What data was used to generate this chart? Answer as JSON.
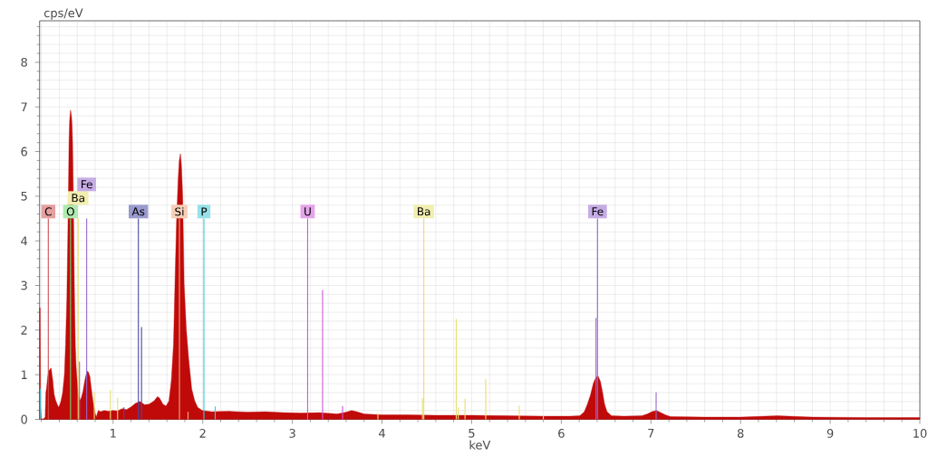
{
  "chart_data": {
    "type": "area",
    "xlabel": "keV",
    "ylabel": "cps/eV",
    "xlim": [
      0.18,
      10
    ],
    "ylim": [
      0,
      8.93
    ],
    "xticks": [
      {
        "value": 0.2,
        "label": null
      },
      {
        "value": 0.4,
        "label": null
      },
      {
        "value": 0.6,
        "label": null
      },
      {
        "value": 0.8,
        "label": null
      },
      1,
      {
        "value": 1.2,
        "label": null
      },
      {
        "value": 1.4,
        "label": null
      },
      {
        "value": 1.6,
        "label": null
      },
      {
        "value": 1.8,
        "label": null
      },
      2,
      {
        "value": 2.2,
        "label": null
      },
      {
        "value": 2.4,
        "label": null
      },
      {
        "value": 2.6,
        "label": null
      },
      {
        "value": 2.8,
        "label": null
      },
      3,
      {
        "value": 3.2,
        "label": null
      },
      {
        "value": 3.4,
        "label": null
      },
      {
        "value": 3.6,
        "label": null
      },
      {
        "value": 3.8,
        "label": null
      },
      4,
      {
        "value": 4.2,
        "label": null
      },
      {
        "value": 4.4,
        "label": null
      },
      {
        "value": 4.6,
        "label": null
      },
      {
        "value": 4.8,
        "label": null
      },
      5,
      {
        "value": 5.2,
        "label": null
      },
      {
        "value": 5.4,
        "label": null
      },
      {
        "value": 5.6,
        "label": null
      },
      {
        "value": 5.8,
        "label": null
      },
      6,
      {
        "value": 6.2,
        "label": null
      },
      {
        "value": 6.4,
        "label": null
      },
      {
        "value": 6.6,
        "label": null
      },
      {
        "value": 6.8,
        "label": null
      },
      7,
      {
        "value": 7.2,
        "label": null
      },
      {
        "value": 7.4,
        "label": null
      },
      {
        "value": 7.6,
        "label": null
      },
      {
        "value": 7.8,
        "label": null
      },
      8,
      {
        "value": 8.2,
        "label": null
      },
      {
        "value": 8.4,
        "label": null
      },
      {
        "value": 8.6,
        "label": null
      },
      {
        "value": 8.8,
        "label": null
      },
      9,
      {
        "value": 9.2,
        "label": null
      },
      {
        "value": 9.4,
        "label": null
      },
      {
        "value": 9.6,
        "label": null
      },
      {
        "value": 9.8,
        "label": null
      },
      10
    ],
    "yticks": [
      0,
      {
        "value": 0.2,
        "label": null
      },
      {
        "value": 0.4,
        "label": null
      },
      {
        "value": 0.6,
        "label": null
      },
      {
        "value": 0.8,
        "label": null
      },
      1,
      {
        "value": 1.2,
        "label": null
      },
      {
        "value": 1.4,
        "label": null
      },
      {
        "value": 1.6,
        "label": null
      },
      {
        "value": 1.8,
        "label": null
      },
      2,
      {
        "value": 2.2,
        "label": null
      },
      {
        "value": 2.4,
        "label": null
      },
      {
        "value": 2.6,
        "label": null
      },
      {
        "value": 2.8,
        "label": null
      },
      3,
      {
        "value": 3.2,
        "label": null
      },
      {
        "value": 3.4,
        "label": null
      },
      {
        "value": 3.6,
        "label": null
      },
      {
        "value": 3.8,
        "label": null
      },
      4,
      {
        "value": 4.2,
        "label": null
      },
      {
        "value": 4.4,
        "label": null
      },
      {
        "value": 4.6,
        "label": null
      },
      {
        "value": 4.8,
        "label": null
      },
      5,
      {
        "value": 5.2,
        "label": null
      },
      {
        "value": 5.4,
        "label": null
      },
      {
        "value": 5.6,
        "label": null
      },
      {
        "value": 5.8,
        "label": null
      },
      6,
      {
        "value": 6.2,
        "label": null
      },
      {
        "value": 6.4,
        "label": null
      },
      {
        "value": 6.6,
        "label": null
      },
      {
        "value": 6.8,
        "label": null
      },
      7,
      {
        "value": 7.2,
        "label": null
      },
      {
        "value": 7.4,
        "label": null
      },
      {
        "value": 7.6,
        "label": null
      },
      {
        "value": 7.8,
        "label": null
      },
      8,
      {
        "value": 8.2,
        "label": null
      },
      {
        "value": 8.4,
        "label": null
      },
      {
        "value": 8.6,
        "label": null
      },
      {
        "value": 8.8,
        "label": null
      }
    ],
    "grid": true,
    "series": [
      {
        "color": "#c00a0a",
        "x": [
          0.18,
          0.186,
          0.19,
          0.2,
          0.23,
          0.242,
          0.25,
          0.258,
          0.27,
          0.282,
          0.295,
          0.309,
          0.318,
          0.326,
          0.335,
          0.343,
          0.36,
          0.376,
          0.393,
          0.405,
          0.417,
          0.437,
          0.457,
          0.47,
          0.484,
          0.494,
          0.502,
          0.508,
          0.515,
          0.525,
          0.535,
          0.542,
          0.548,
          0.556,
          0.562,
          0.567,
          0.572,
          0.579,
          0.587,
          0.595,
          0.612,
          0.629,
          0.646,
          0.663,
          0.68,
          0.692,
          0.703,
          0.712,
          0.724,
          0.741,
          0.757,
          0.774,
          0.785,
          0.798,
          0.812,
          0.822,
          0.835,
          0.86,
          0.9,
          0.95,
          1.0,
          1.05,
          1.1,
          1.15,
          1.2,
          1.25,
          1.3,
          1.35,
          1.4,
          1.455,
          1.496,
          1.52,
          1.556,
          1.59,
          1.623,
          1.65,
          1.674,
          1.69,
          1.707,
          1.725,
          1.738,
          1.751,
          1.762,
          1.776,
          1.792,
          1.816,
          1.843,
          1.877,
          1.911,
          1.944,
          1.995,
          2.1,
          2.3,
          2.5,
          2.7,
          2.9,
          3.1,
          3.3,
          3.5,
          3.6,
          3.66,
          3.72,
          3.8,
          4.0,
          4.3,
          4.6,
          5.0,
          5.4,
          5.8,
          6.1,
          6.207,
          6.257,
          6.291,
          6.325,
          6.358,
          6.382,
          6.409,
          6.436,
          6.46,
          6.483,
          6.51,
          6.56,
          6.7,
          6.9,
          6.96,
          7.01,
          7.06,
          7.11,
          7.16,
          7.22,
          7.6,
          8.0,
          8.41,
          8.8,
          9.4,
          10
        ],
        "values": [
          2.5,
          2.5,
          0.3,
          0.0,
          0.02,
          0.05,
          0.6,
          0.71,
          0.95,
          1.08,
          1.12,
          1.15,
          1.0,
          0.89,
          0.7,
          0.55,
          0.42,
          0.34,
          0.27,
          0.33,
          0.4,
          0.6,
          1.01,
          1.69,
          2.71,
          4.0,
          5.2,
          6.2,
          6.7,
          6.93,
          6.8,
          6.6,
          6.2,
          5.1,
          4.0,
          3.1,
          2.37,
          1.63,
          1.2,
          0.96,
          0.55,
          0.42,
          0.49,
          0.62,
          0.82,
          0.95,
          1.03,
          1.08,
          1.06,
          0.96,
          0.69,
          0.42,
          0.3,
          0.15,
          0.05,
          0.12,
          0.2,
          0.17,
          0.2,
          0.18,
          0.2,
          0.19,
          0.24,
          0.22,
          0.28,
          0.36,
          0.4,
          0.33,
          0.34,
          0.41,
          0.51,
          0.47,
          0.34,
          0.3,
          0.41,
          0.88,
          1.69,
          3.04,
          4.39,
          5.35,
          5.8,
          5.95,
          5.7,
          5.0,
          3.04,
          2.03,
          1.35,
          0.68,
          0.41,
          0.27,
          0.2,
          0.17,
          0.18,
          0.16,
          0.17,
          0.15,
          0.14,
          0.15,
          0.12,
          0.16,
          0.2,
          0.17,
          0.12,
          0.1,
          0.1,
          0.09,
          0.09,
          0.08,
          0.07,
          0.07,
          0.08,
          0.17,
          0.34,
          0.54,
          0.81,
          0.92,
          0.98,
          0.85,
          0.61,
          0.34,
          0.17,
          0.08,
          0.07,
          0.08,
          0.12,
          0.17,
          0.2,
          0.15,
          0.1,
          0.06,
          0.05,
          0.05,
          0.08,
          0.05,
          0.04,
          0.04
        ]
      },
      {
        "type": "bar",
        "name": "C",
        "color": "#d05050",
        "x": [
          0.277
        ],
        "values": [
          4.5
        ]
      },
      {
        "type": "bar",
        "name": "O",
        "color": "#70d870",
        "x": [
          0.525
        ],
        "values": [
          4.5
        ]
      },
      {
        "type": "bar",
        "name": "Ba",
        "color": "#e8e070",
        "x": [
          0.61,
          0.79,
          0.97,
          1.05,
          3.954,
          4.451,
          4.466,
          4.828,
          4.85,
          4.926,
          5.157,
          5.531,
          5.8
        ],
        "values": [
          4.5,
          0.62,
          0.66,
          0.48,
          0.14,
          0.48,
          4.5,
          2.25,
          0.27,
          0.46,
          0.9,
          0.31,
          0.08
        ]
      },
      {
        "type": "bar",
        "name": "Fe",
        "color": "#9868d0",
        "x": [
          0.625,
          0.705,
          6.387,
          6.404,
          7.058
        ],
        "values": [
          1.29,
          4.5,
          2.27,
          4.5,
          0.61
        ]
      },
      {
        "type": "bar",
        "name": "As",
        "color": "#4848a8",
        "x": [
          1.12,
          1.282,
          1.317
        ],
        "values": [
          0.27,
          4.5,
          2.07
        ]
      },
      {
        "type": "bar",
        "name": "Si",
        "color": "#f0a880",
        "x": [
          1.74,
          1.836
        ],
        "values": [
          4.5,
          0.17
        ]
      },
      {
        "type": "bar",
        "name": "P",
        "color": "#40c8d8",
        "x": [
          0.19,
          2.013,
          2.139
        ],
        "values": [
          0.69,
          4.5,
          0.29
        ]
      },
      {
        "type": "bar",
        "name": "U",
        "color": "#d058d8",
        "x": [
          3.17,
          3.337,
          3.56
        ],
        "values": [
          4.5,
          2.9,
          0.3
        ]
      }
    ]
  }
}
